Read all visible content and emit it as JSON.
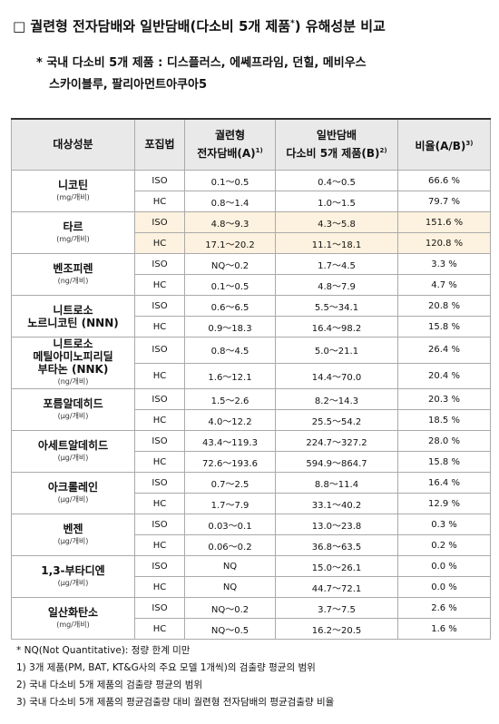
{
  "title": {
    "marker": "□",
    "text": "궐련형 전자담배와 일반담배(다소비 5개 제품",
    "star": "*",
    "rest": ") 유해성분 비교"
  },
  "subtitle": [
    "* 국내 다소비 5개 제품 : 디스플러스, 에쎄프라임, 던힐, 메비우스",
    "스카이블루, 팔리아먼트아쿠아5"
  ],
  "table": {
    "header": [
      {
        "lines": [
          "대상성분"
        ],
        "note": null
      },
      {
        "lines": [
          "포집법"
        ],
        "note": null
      },
      {
        "lines": [
          "궐련형",
          "전자담배(A)"
        ],
        "note": "1)"
      },
      {
        "lines": [
          "일반담배",
          "다소비 5개 제품(B)"
        ],
        "note": "2)"
      },
      {
        "lines": [
          "비율(A/B)"
        ],
        "note": "3)"
      }
    ],
    "groups": [
      {
        "name": [
          "니코틴"
        ],
        "unit": "(mg/개비)",
        "highlight": false,
        "rows": [
          [
            "ISO",
            "0.1～0.5",
            "0.4～0.5",
            "66.6 %"
          ],
          [
            "HC",
            "0.8～1.4",
            "1.0～1.5",
            "79.7 %"
          ]
        ]
      },
      {
        "name": [
          "타르"
        ],
        "unit": "(mg/개비)",
        "highlight": true,
        "rows": [
          [
            "ISO",
            "4.8～9.3",
            "4.3～5.8",
            "151.6 %"
          ],
          [
            "HC",
            "17.1～20.2",
            "11.1～18.1",
            "120.8 %"
          ]
        ]
      },
      {
        "name": [
          "벤조피렌"
        ],
        "unit": "(ng/개비)",
        "highlight": false,
        "rows": [
          [
            "ISO",
            "NQ～0.2",
            "1.7～4.5",
            "3.3 %"
          ],
          [
            "HC",
            "0.1～0.5",
            "4.8～7.9",
            "4.7 %"
          ]
        ]
      },
      {
        "name": [
          "니트로소",
          "노르니코틴 (NNN)"
        ],
        "unit": null,
        "highlight": false,
        "rows": [
          [
            "ISO",
            "0.6～6.5",
            "5.5～34.1",
            "20.8 %"
          ],
          [
            "HC",
            "0.9～18.3",
            "16.4～98.2",
            "15.8 %"
          ]
        ]
      },
      {
        "name": [
          "니트로소",
          "메틸아미노피리딜",
          "부타논 (NNK)"
        ],
        "unit": "(ng/개비)",
        "highlight": false,
        "rows": [
          [
            "ISO",
            "0.8～4.5",
            "5.0～21.1",
            "26.4 %"
          ],
          [
            "HC",
            "1.6～12.1",
            "14.4～70.0",
            "20.4 %"
          ]
        ]
      },
      {
        "name": [
          "포름알데히드"
        ],
        "unit": "(μg/개비)",
        "highlight": false,
        "rows": [
          [
            "ISO",
            "1.5～2.6",
            "8.2～14.3",
            "20.3 %"
          ],
          [
            "HC",
            "4.0～12.2",
            "25.5～54.2",
            "18.5 %"
          ]
        ]
      },
      {
        "name": [
          "아세트알데히드"
        ],
        "unit": "(μg/개비)",
        "highlight": false,
        "rows": [
          [
            "ISO",
            "43.4～119.3",
            "224.7～327.2",
            "28.0 %"
          ],
          [
            "HC",
            "72.6～193.6",
            "594.9～864.7",
            "15.8 %"
          ]
        ]
      },
      {
        "name": [
          "아크롤레인"
        ],
        "unit": "(μg/개비)",
        "highlight": false,
        "rows": [
          [
            "ISO",
            "0.7～2.5",
            "8.8～11.4",
            "16.4 %"
          ],
          [
            "HC",
            "1.7～7.9",
            "33.1～40.2",
            "12.9 %"
          ]
        ]
      },
      {
        "name": [
          "벤젠"
        ],
        "unit": "(μg/개비)",
        "highlight": false,
        "rows": [
          [
            "ISO",
            "0.03～0.1",
            "13.0～23.8",
            "0.3 %"
          ],
          [
            "HC",
            "0.06～0.2",
            "36.8～63.5",
            "0.2 %"
          ]
        ]
      },
      {
        "name": [
          "1,3-부타디엔"
        ],
        "unit": "(μg/개비)",
        "highlight": false,
        "rows": [
          [
            "ISO",
            "NQ",
            "15.0～26.1",
            "0.0 %"
          ],
          [
            "HC",
            "NQ",
            "44.7～72.1",
            "0.0 %"
          ]
        ]
      },
      {
        "name": [
          "일산화탄소"
        ],
        "unit": "(mg/개비)",
        "highlight": false,
        "rows": [
          [
            "ISO",
            "NQ～0.2",
            "3.7～7.5",
            "2.6 %"
          ],
          [
            "HC",
            "NQ～0.5",
            "16.2～20.5",
            "1.6 %"
          ]
        ]
      }
    ]
  },
  "footnotes": [
    "* NQ(Not Quantitative): 정량 한계 미만",
    "1) 3개 제품(PM, BAT, KT&G사의 주요 모델 1개씩)의 검출량 평균의 범위",
    "2) 국내 다소비 5개 제품의 검출량 평균의 범위",
    "3) 국내 다소비 5개 제품의 평균검출량 대비 궐련형 전자담배의 평균검출량 비율"
  ]
}
